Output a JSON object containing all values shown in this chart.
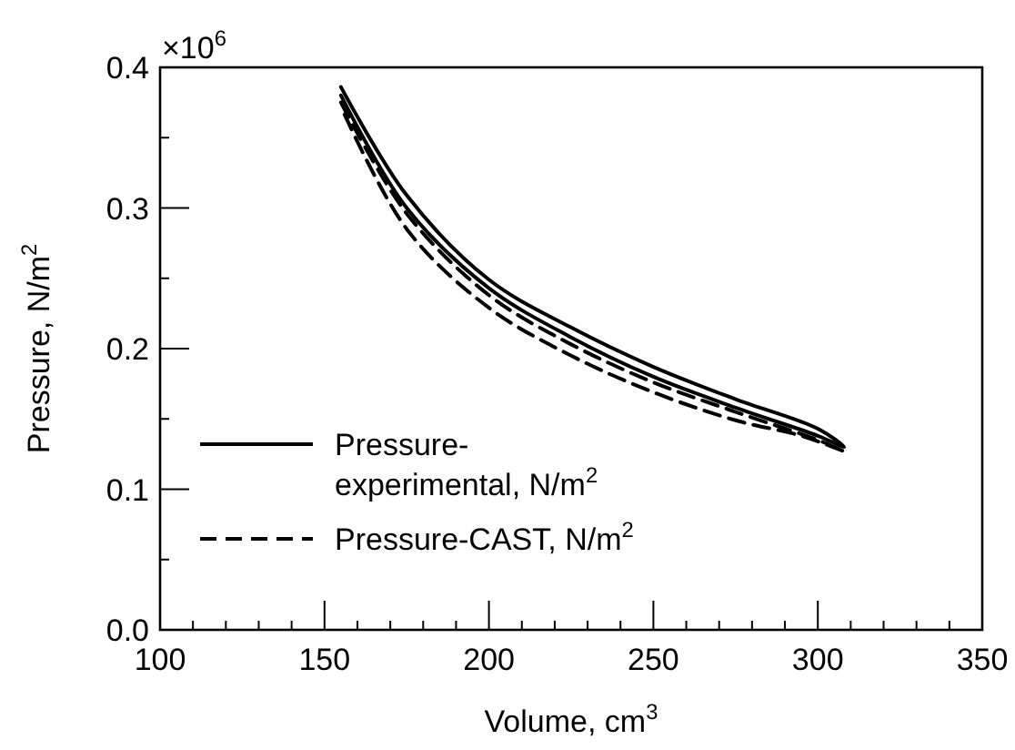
{
  "chart_data": {
    "type": "line",
    "xlabel": "Volume, cm$^{3}$",
    "ylabel": "Pressure, N/m$^{2}$",
    "xlim": [
      100,
      350
    ],
    "ylim": [
      0,
      0.4
    ],
    "xticks": [
      100,
      {
        "value": 110,
        "label": null
      },
      {
        "value": 120,
        "label": null
      },
      {
        "value": 130,
        "label": null
      },
      {
        "value": 140,
        "label": null
      },
      150,
      {
        "value": 160,
        "label": null
      },
      {
        "value": 170,
        "label": null
      },
      {
        "value": 180,
        "label": null
      },
      {
        "value": 190,
        "label": null
      },
      200,
      {
        "value": 210,
        "label": null
      },
      {
        "value": 220,
        "label": null
      },
      {
        "value": 230,
        "label": null
      },
      {
        "value": 240,
        "label": null
      },
      250,
      {
        "value": 260,
        "label": null
      },
      {
        "value": 270,
        "label": null
      },
      {
        "value": 280,
        "label": null
      },
      {
        "value": 290,
        "label": null
      },
      300,
      {
        "value": 310,
        "label": null
      },
      {
        "value": 320,
        "label": null
      },
      {
        "value": 330,
        "label": null
      },
      {
        "value": 340,
        "label": null
      },
      350
    ],
    "yticks": [
      {
        "value": 0,
        "label": "0.0"
      },
      {
        "value": 0.05,
        "label": null
      },
      0.1,
      {
        "value": 0.15,
        "label": null
      },
      0.2,
      {
        "value": 0.25,
        "label": null
      },
      0.3,
      {
        "value": 0.35,
        "label": null
      },
      0.4
    ],
    "annotations": [
      "×10$^{6}$"
    ],
    "grid": false,
    "legend": "bottom left",
    "marker": "none",
    "series": [
      {
        "name": "Pressure-experimental, N/m$^{2}$",
        "color": "#000000",
        "line_style": "solid",
        "x": [
          155,
          175,
          200,
          225,
          250,
          275,
          300,
          308,
          300,
          275,
          250,
          225,
          200,
          175,
          155
        ],
        "values": [
          0.386,
          0.309,
          0.249,
          0.215,
          0.187,
          0.164,
          0.143,
          0.13,
          0.138,
          0.158,
          0.18,
          0.208,
          0.243,
          0.3,
          0.38
        ]
      },
      {
        "name": "Pressure-CAST, N/m$^{2}$",
        "color": "#000000",
        "line_style": "dashed",
        "x": [
          155,
          175,
          200,
          225,
          250,
          275,
          300,
          308,
          295,
          275,
          250,
          225,
          200,
          175,
          155
        ],
        "values": [
          0.375,
          0.296,
          0.238,
          0.203,
          0.176,
          0.155,
          0.135,
          0.127,
          0.138,
          0.149,
          0.169,
          0.195,
          0.229,
          0.285,
          0.372
        ]
      }
    ]
  }
}
